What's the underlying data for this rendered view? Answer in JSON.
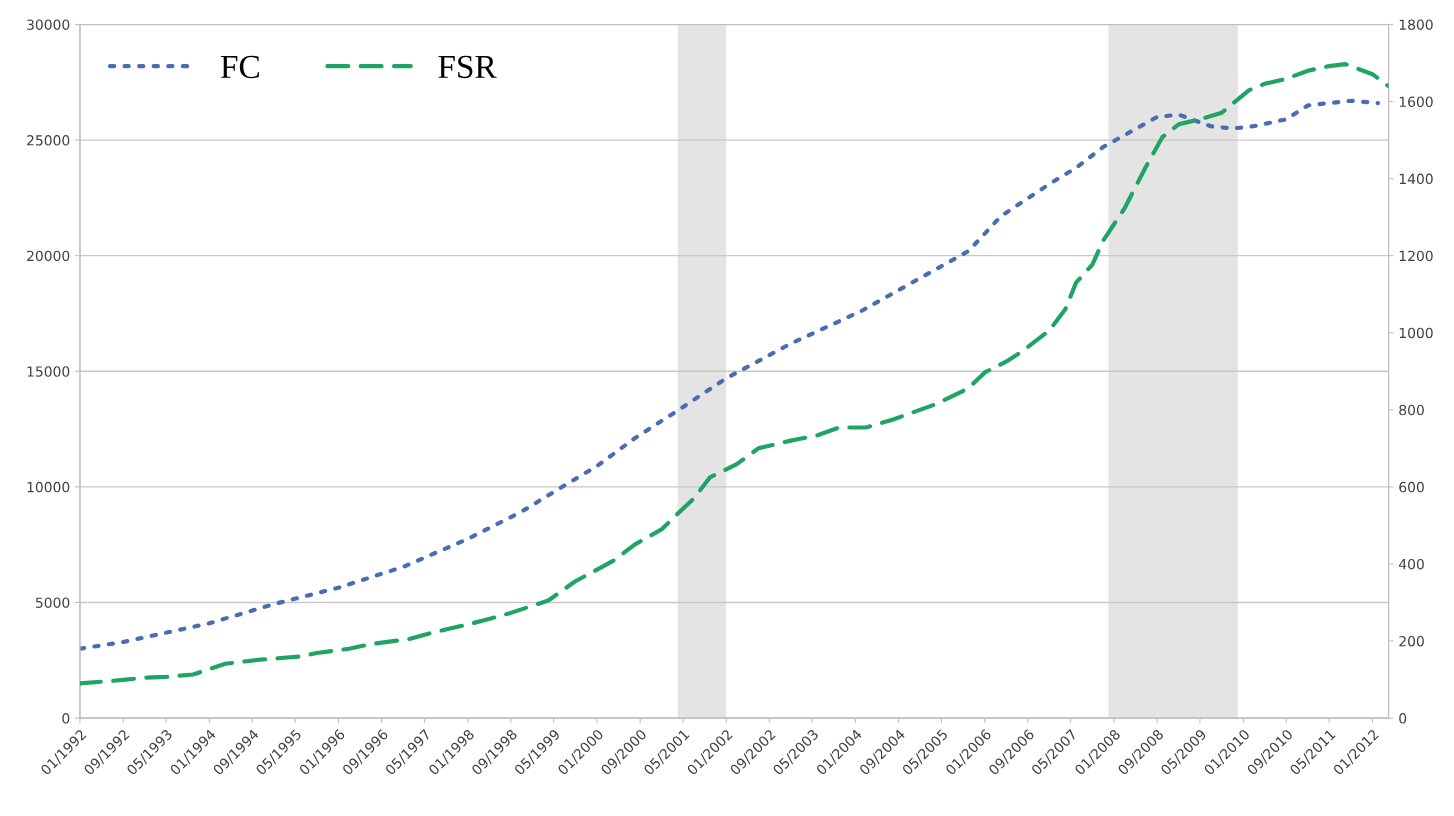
{
  "chart_data": {
    "type": "line",
    "series": [
      {
        "name": "FC",
        "color": "#4a6cb0",
        "line_style": "dotted",
        "x": [
          "1992-01",
          "1992-09",
          "1994-01",
          "1995-01",
          "1996-01",
          "1997-01",
          "1998-01",
          "1998-11",
          "1999-07",
          "2000-01",
          "2000-08",
          "2001-04",
          "2002-01",
          "2003-01",
          "2004-02",
          "2004-12",
          "2005-10",
          "2006-04",
          "2007-01",
          "2007-06",
          "2007-11",
          "2008-09",
          "2009-01",
          "2009-07",
          "2009-11",
          "2010-03",
          "2010-09",
          "2011-01",
          "2011-09",
          "2012-02"
        ],
        "values": [
          3000,
          3290,
          4100,
          4930,
          5640,
          6540,
          7750,
          8930,
          10060,
          10900,
          12100,
          13300,
          14700,
          16200,
          17600,
          18900,
          20200,
          21700,
          23100,
          23800,
          24700,
          26000,
          26100,
          25600,
          25500,
          25600,
          25900,
          26500,
          26700,
          26600
        ]
      },
      {
        "name": "FSR",
        "color": "#1fa463",
        "line_style": "dashed",
        "axis": "y2",
        "x": [
          "1992-01",
          "1992-09",
          "1993-01",
          "1993-05",
          "1993-10",
          "1994-04",
          "1994-10",
          "1995-06",
          "1995-09",
          "1996-03",
          "1996-07",
          "1997-02",
          "1997-06",
          "1998-01",
          "1998-05",
          "1998-09",
          "1999-04",
          "1999-09",
          "2000-04",
          "2000-08",
          "2001-01",
          "2001-04",
          "2001-07",
          "2001-10",
          "2002-03",
          "2002-07",
          "2003-01",
          "2003-06",
          "2003-10",
          "2004-03",
          "2004-08",
          "2005-04",
          "2005-10",
          "2006-01",
          "2006-05",
          "2006-08",
          "2007-01",
          "2007-04",
          "2007-06",
          "2007-09",
          "2007-11",
          "2008-03",
          "2008-07",
          "2008-10",
          "2009-01",
          "2009-05",
          "2009-09",
          "2010-02",
          "2010-05",
          "2010-09",
          "2011-01",
          "2011-05",
          "2011-08",
          "2012-01",
          "2012-04"
        ],
        "values": [
          90,
          99,
          105,
          107,
          113,
          141,
          151,
          160,
          169,
          180,
          192,
          205,
          220,
          243,
          257,
          273,
          305,
          355,
          408,
          450,
          490,
          530,
          570,
          625,
          659,
          700,
          720,
          734,
          754,
          754,
          775,
          815,
          856,
          897,
          925,
          952,
          1006,
          1061,
          1130,
          1177,
          1239,
          1323,
          1432,
          1508,
          1541,
          1554,
          1571,
          1629,
          1646,
          1659,
          1680,
          1692,
          1697,
          1671,
          1640
        ]
      }
    ],
    "xlim": [
      "1992-01",
      "2012-04"
    ],
    "xticks": [
      {
        "value": "1992-01",
        "label": "01/1992"
      },
      {
        "value": "1992-09",
        "label": "09/1992"
      },
      {
        "value": "1993-05",
        "label": "05/1993"
      },
      {
        "value": "1994-01",
        "label": "01/1994"
      },
      {
        "value": "1994-09",
        "label": "09/1994"
      },
      {
        "value": "1995-05",
        "label": "05/1995"
      },
      {
        "value": "1996-01",
        "label": "01/1996"
      },
      {
        "value": "1996-09",
        "label": "09/1996"
      },
      {
        "value": "1997-05",
        "label": "05/1997"
      },
      {
        "value": "1998-01",
        "label": "01/1998"
      },
      {
        "value": "1998-09",
        "label": "09/1998"
      },
      {
        "value": "1999-05",
        "label": "05/1999"
      },
      {
        "value": "2000-01",
        "label": "01/2000"
      },
      {
        "value": "2000-09",
        "label": "09/2000"
      },
      {
        "value": "2001-05",
        "label": "05/2001"
      },
      {
        "value": "2002-01",
        "label": "01/2002"
      },
      {
        "value": "2002-09",
        "label": "09/2002"
      },
      {
        "value": "2003-05",
        "label": "05/2003"
      },
      {
        "value": "2004-01",
        "label": "01/2004"
      },
      {
        "value": "2004-09",
        "label": "09/2004"
      },
      {
        "value": "2005-05",
        "label": "05/2005"
      },
      {
        "value": "2006-01",
        "label": "01/2006"
      },
      {
        "value": "2006-09",
        "label": "09/2006"
      },
      {
        "value": "2007-05",
        "label": "05/2007"
      },
      {
        "value": "2008-01",
        "label": "01/2008"
      },
      {
        "value": "2008-09",
        "label": "09/2008"
      },
      {
        "value": "2009-05",
        "label": "05/2009"
      },
      {
        "value": "2010-01",
        "label": "01/2010"
      },
      {
        "value": "2010-09",
        "label": "09/2010"
      },
      {
        "value": "2011-05",
        "label": "05/2011"
      },
      {
        "value": "2012-01",
        "label": "01/2012"
      }
    ],
    "ylim": [
      0,
      30000
    ],
    "yticks": [
      0,
      5000,
      10000,
      15000,
      20000,
      25000,
      30000
    ],
    "y2lim": [
      0,
      1800
    ],
    "y2ticks": [
      0,
      200,
      400,
      600,
      800,
      1000,
      1200,
      1400,
      1600,
      1800
    ],
    "bands": [
      {
        "axis": "x",
        "from": "2001-04",
        "to": "2002-01",
        "color": "#e4e4e4"
      },
      {
        "axis": "x",
        "from": "2007-12",
        "to": "2009-12",
        "color": "#e4e4e4"
      }
    ],
    "grid": "y",
    "legend": "top left"
  }
}
